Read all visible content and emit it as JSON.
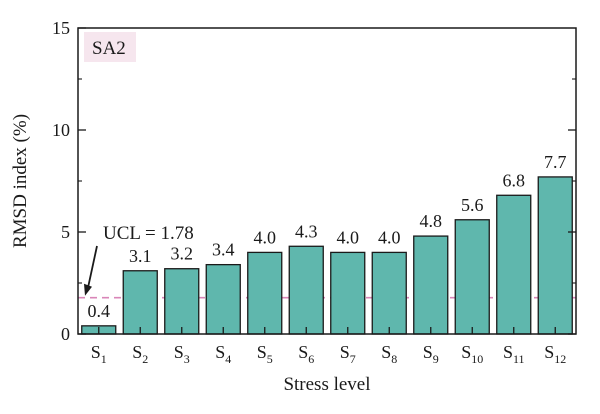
{
  "chart_data": {
    "type": "bar",
    "panel_label": "SA2",
    "xlabel": "Stress level",
    "ylabel": "RMSD index (%)",
    "ylim": [
      0,
      15
    ],
    "yticks": [
      "0",
      "5",
      "10",
      "15"
    ],
    "categories": [
      {
        "base": "S",
        "sub": "1"
      },
      {
        "base": "S",
        "sub": "2"
      },
      {
        "base": "S",
        "sub": "3"
      },
      {
        "base": "S",
        "sub": "4"
      },
      {
        "base": "S",
        "sub": "5"
      },
      {
        "base": "S",
        "sub": "6"
      },
      {
        "base": "S",
        "sub": "7"
      },
      {
        "base": "S",
        "sub": "8"
      },
      {
        "base": "S",
        "sub": "9"
      },
      {
        "base": "S",
        "sub": "10"
      },
      {
        "base": "S",
        "sub": "11"
      },
      {
        "base": "S",
        "sub": "12"
      }
    ],
    "values": [
      0.4,
      3.1,
      3.2,
      3.4,
      4.0,
      4.3,
      4.0,
      4.0,
      4.8,
      5.6,
      6.8,
      7.7
    ],
    "value_labels": [
      "0.4",
      "3.1",
      "3.2",
      "3.4",
      "4.0",
      "4.3",
      "4.0",
      "4.0",
      "4.8",
      "5.6",
      "6.8",
      "7.7"
    ],
    "threshold": {
      "value": 1.78,
      "label": "UCL = 1.78",
      "color": "#d986b8"
    },
    "bar_color": "#5fb7ad",
    "bar_edge_color": "#1a1a1a",
    "panel_label_bg": "#f6e6ee",
    "grid": false
  }
}
